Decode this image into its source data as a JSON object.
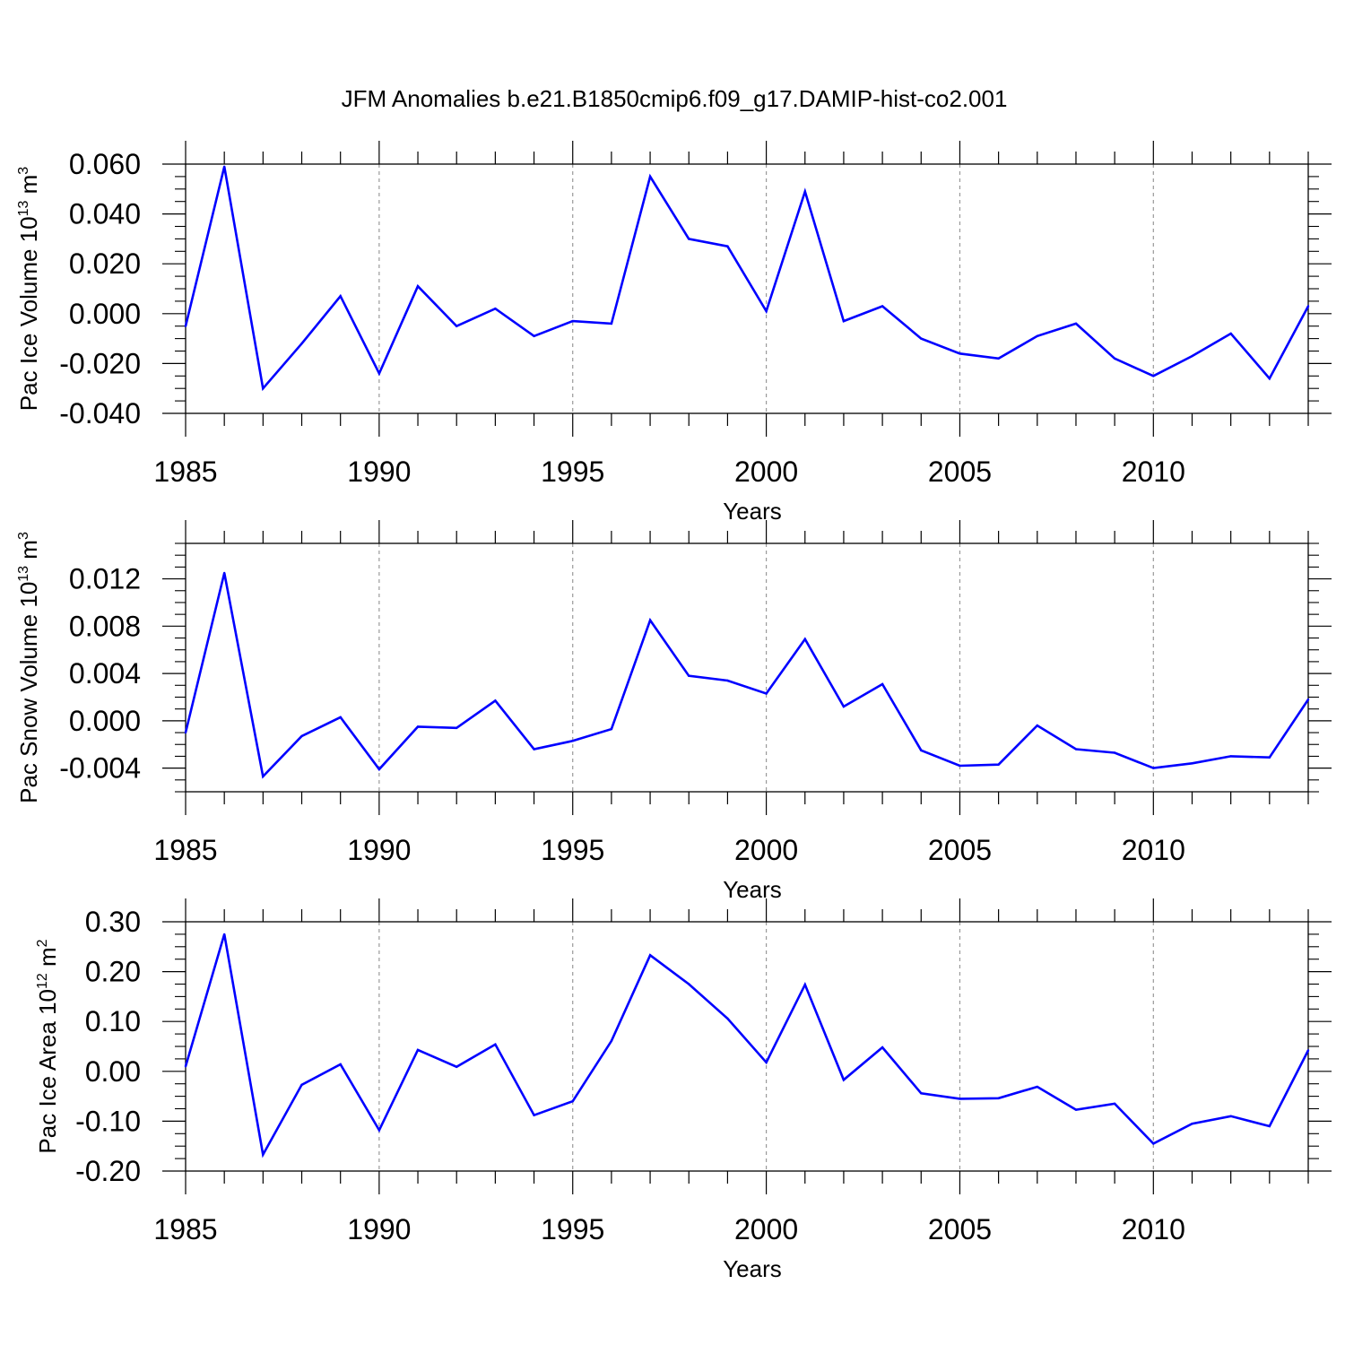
{
  "title": "JFM Anomalies b.e21.B1850cmip6.f09_g17.DAMIP-hist-co2.001",
  "line_color": "#0000ff",
  "chart_data": [
    {
      "type": "line",
      "xlabel": "Years",
      "ylabel": {
        "text": "Pac Ice Volume 10",
        "sup1": "13",
        "unit": " m",
        "sup2": "3"
      },
      "x": [
        1985,
        1986,
        1987,
        1988,
        1989,
        1990,
        1991,
        1992,
        1993,
        1994,
        1995,
        1996,
        1997,
        1998,
        1999,
        2000,
        2001,
        2002,
        2003,
        2004,
        2005,
        2006,
        2007,
        2008,
        2009,
        2010,
        2011,
        2012,
        2013,
        2014
      ],
      "values": [
        -0.005,
        0.059,
        -0.03,
        -0.012,
        0.007,
        -0.024,
        0.011,
        -0.005,
        0.002,
        -0.009,
        -0.003,
        -0.004,
        0.055,
        0.03,
        0.027,
        0.001,
        0.049,
        -0.003,
        0.003,
        -0.01,
        -0.016,
        -0.018,
        -0.009,
        -0.004,
        -0.018,
        -0.025,
        -0.017,
        -0.008,
        -0.026,
        0.003
      ],
      "xlim": [
        1985,
        2014
      ],
      "ylim": [
        -0.04,
        0.06
      ],
      "yticks": [
        -0.04,
        -0.02,
        0.0,
        0.02,
        0.04,
        0.06
      ],
      "ytick_labels": [
        "-0.040",
        "-0.020",
        "0.000",
        "0.020",
        "0.040",
        "0.060"
      ],
      "yminor_step": 0.005,
      "xticks": [
        1985,
        1990,
        1995,
        2000,
        2005,
        2010
      ],
      "xtick_labels": [
        "1985",
        "1990",
        "1995",
        "2000",
        "2005",
        "2010"
      ]
    },
    {
      "type": "line",
      "xlabel": "Years",
      "ylabel": {
        "text": "Pac Snow Volume 10",
        "sup1": "13",
        "unit": " m",
        "sup2": "3"
      },
      "x": [
        1985,
        1986,
        1987,
        1988,
        1989,
        1990,
        1991,
        1992,
        1993,
        1994,
        1995,
        1996,
        1997,
        1998,
        1999,
        2000,
        2001,
        2002,
        2003,
        2004,
        2005,
        2006,
        2007,
        2008,
        2009,
        2010,
        2011,
        2012,
        2013,
        2014
      ],
      "values": [
        -0.001,
        0.0125,
        -0.0047,
        -0.0013,
        0.0003,
        -0.0041,
        -0.0005,
        -0.0006,
        0.0017,
        -0.0024,
        -0.0017,
        -0.0007,
        0.0085,
        0.0038,
        0.0034,
        0.0023,
        0.0069,
        0.0012,
        0.0031,
        -0.0025,
        -0.0038,
        -0.0037,
        -0.0004,
        -0.0024,
        -0.0027,
        -0.004,
        -0.0036,
        -0.003,
        -0.0031,
        0.0018
      ],
      "xlim": [
        1985,
        2014
      ],
      "ylim": [
        -0.006,
        0.015
      ],
      "yticks": [
        -0.004,
        0.0,
        0.004,
        0.008,
        0.012
      ],
      "ytick_labels": [
        "-0.004",
        "0.000",
        "0.004",
        "0.008",
        "0.012"
      ],
      "yminor_step": 0.001,
      "xticks": [
        1985,
        1990,
        1995,
        2000,
        2005,
        2010
      ],
      "xtick_labels": [
        "1985",
        "1990",
        "1995",
        "2000",
        "2005",
        "2010"
      ]
    },
    {
      "type": "line",
      "xlabel": "Years",
      "ylabel": {
        "text": "Pac Ice Area 10",
        "sup1": "12",
        "unit": " m",
        "sup2": "2"
      },
      "x": [
        1985,
        1986,
        1987,
        1988,
        1989,
        1990,
        1991,
        1992,
        1993,
        1994,
        1995,
        1996,
        1997,
        1998,
        1999,
        2000,
        2001,
        2002,
        2003,
        2004,
        2005,
        2006,
        2007,
        2008,
        2009,
        2010,
        2011,
        2012,
        2013,
        2014
      ],
      "values": [
        0.01,
        0.275,
        -0.167,
        -0.027,
        0.014,
        -0.118,
        0.043,
        0.009,
        0.054,
        -0.088,
        -0.06,
        0.061,
        0.233,
        0.175,
        0.106,
        0.018,
        0.174,
        -0.017,
        0.048,
        -0.044,
        -0.055,
        -0.054,
        -0.031,
        -0.077,
        -0.065,
        -0.145,
        -0.105,
        -0.09,
        -0.11,
        0.042
      ],
      "xlim": [
        1985,
        2014
      ],
      "ylim": [
        -0.2,
        0.3
      ],
      "yticks": [
        -0.2,
        -0.1,
        0.0,
        0.1,
        0.2,
        0.3
      ],
      "ytick_labels": [
        "-0.20",
        "-0.10",
        "0.00",
        "0.10",
        "0.20",
        "0.30"
      ],
      "yminor_step": 0.025,
      "xticks": [
        1985,
        1990,
        1995,
        2000,
        2005,
        2010
      ],
      "xtick_labels": [
        "1985",
        "1990",
        "1995",
        "2000",
        "2005",
        "2010"
      ]
    }
  ]
}
